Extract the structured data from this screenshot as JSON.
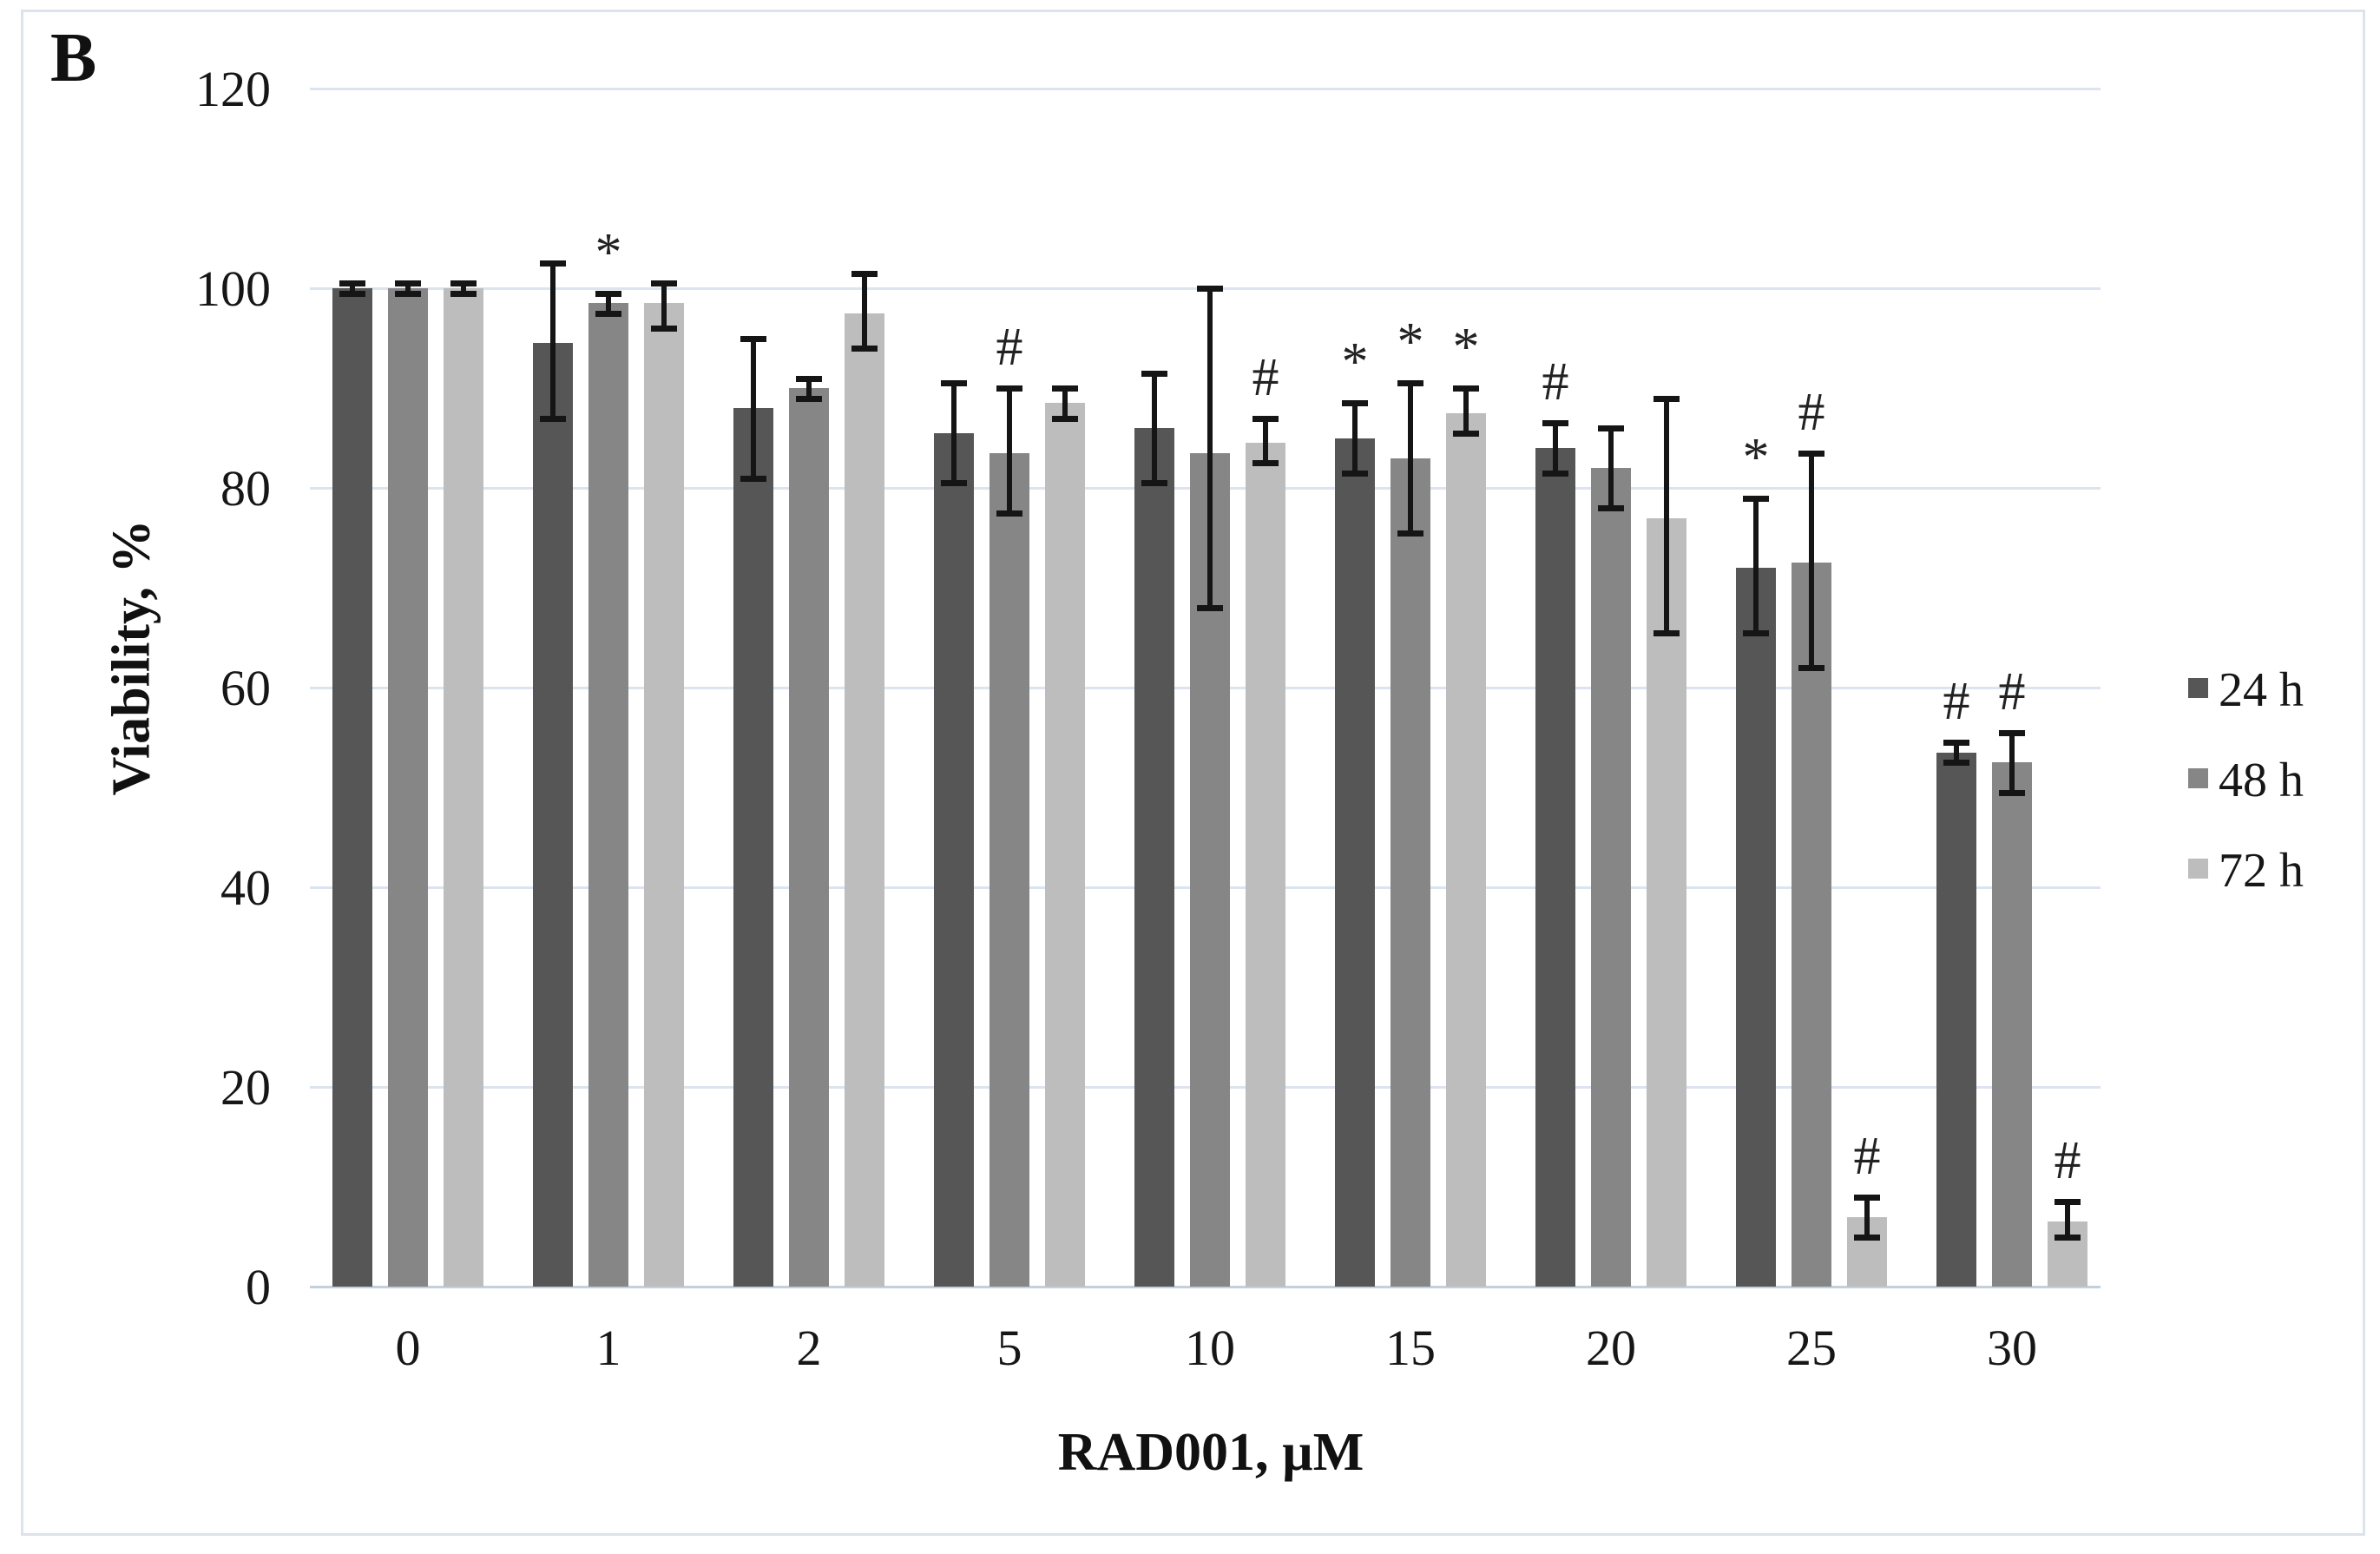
{
  "panel_label": "B",
  "y_axis": {
    "title": "Viability, %",
    "ticks": [
      0,
      20,
      40,
      60,
      80,
      100,
      120
    ],
    "min": 0,
    "max": 120
  },
  "x_axis": {
    "title": "RAD001, µM",
    "categories": [
      "0",
      "1",
      "2",
      "5",
      "10",
      "15",
      "20",
      "25",
      "30"
    ]
  },
  "legend": {
    "position": "right",
    "entries": [
      {
        "label": "24 h",
        "color": "#565656"
      },
      {
        "label": "48 h",
        "color": "#868686"
      },
      {
        "label": "72 h",
        "color": "#bdbdbd"
      }
    ]
  },
  "colors": {
    "gridline": "#dce4f0",
    "axis_line": "#c3d0de",
    "error_bar": "#151515",
    "text": "#161616"
  },
  "chart_data": {
    "type": "bar",
    "title": "",
    "xlabel": "RAD001, µM",
    "ylabel": "Viability, %",
    "ylim": [
      0,
      120
    ],
    "grid": true,
    "legend_position": "right",
    "categories": [
      "0",
      "1",
      "2",
      "5",
      "10",
      "15",
      "20",
      "25",
      "30"
    ],
    "series": [
      {
        "name": "24 h",
        "color": "#565656",
        "values": [
          100,
          94.5,
          88,
          85.5,
          86,
          85,
          84,
          72,
          53.5
        ],
        "err_up": [
          0.5,
          8,
          7,
          5,
          5.5,
          3.5,
          2.5,
          7,
          1
        ],
        "err_down": [
          0.5,
          7.5,
          7,
          5,
          5.5,
          3.5,
          2.5,
          6.5,
          1
        ],
        "annotations": [
          "",
          "",
          "",
          "",
          "",
          "*",
          "#",
          "*",
          "#"
        ]
      },
      {
        "name": "48 h",
        "color": "#868686",
        "values": [
          100,
          98.5,
          90,
          83.5,
          83.5,
          83,
          82,
          72.5,
          52.5
        ],
        "err_up": [
          0.5,
          1,
          1,
          6.5,
          16.5,
          7.5,
          4,
          11,
          3
        ],
        "err_down": [
          0.5,
          1,
          1,
          6,
          15.5,
          7.5,
          4,
          10.5,
          3
        ],
        "annotations": [
          "",
          "*",
          "",
          "#",
          "",
          "*",
          "",
          "#",
          "#"
        ]
      },
      {
        "name": "72 h",
        "color": "#bdbdbd",
        "values": [
          100,
          98.5,
          97.5,
          88.5,
          84.5,
          87.5,
          77,
          7,
          6.5
        ],
        "err_up": [
          0.5,
          2,
          4,
          1.5,
          2.5,
          2.5,
          12,
          2,
          2
        ],
        "err_down": [
          0.5,
          2.5,
          3.5,
          1.5,
          2,
          2,
          11.5,
          2,
          1.5
        ],
        "annotations": [
          "",
          "",
          "",
          "",
          "#",
          "*",
          "",
          "#",
          "#"
        ]
      }
    ]
  }
}
